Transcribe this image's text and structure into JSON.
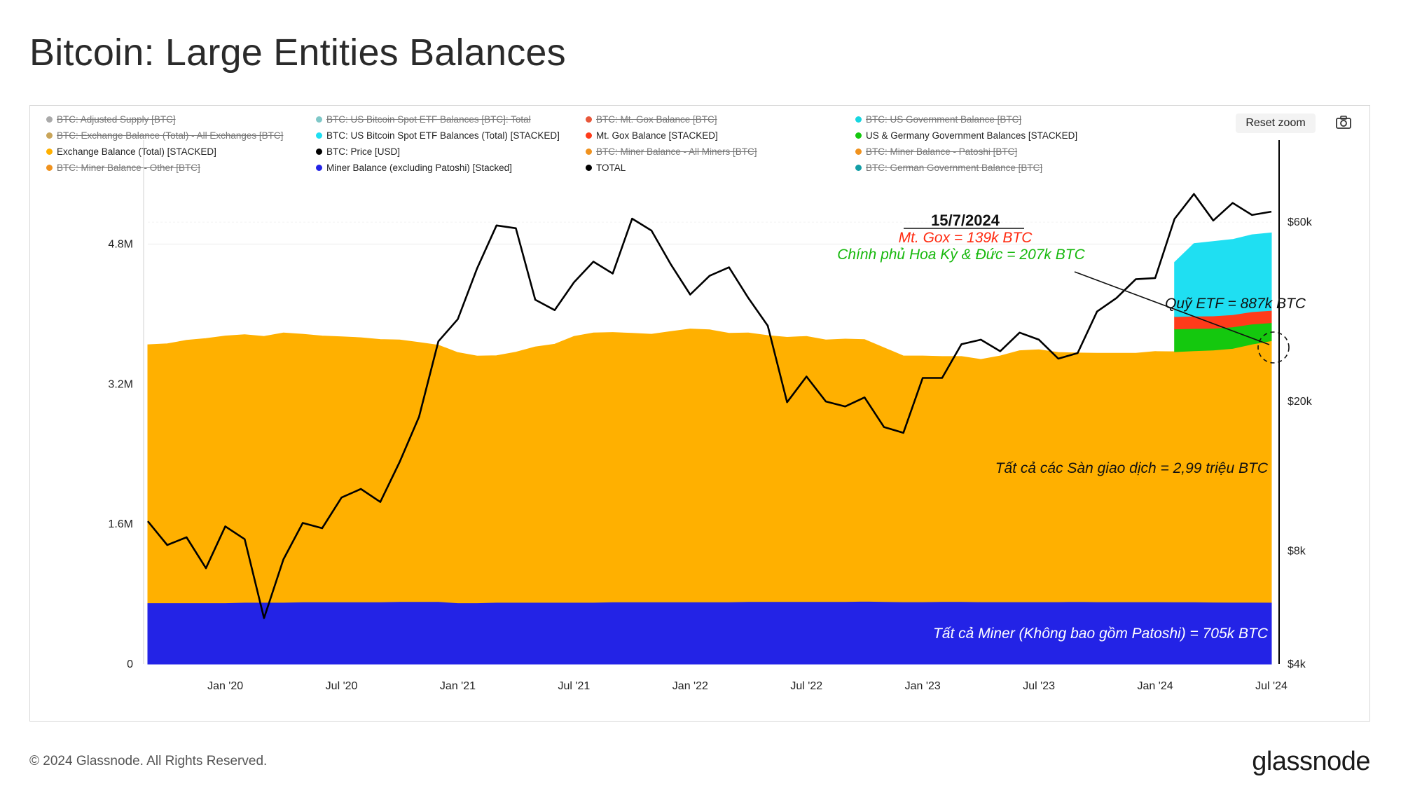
{
  "title": "Bitcoin: Large Entities Balances",
  "toolbar": {
    "reset_zoom": "Reset zoom",
    "camera_icon": "camera-icon"
  },
  "legend": [
    {
      "label": "BTC: Adjusted Supply [BTC]",
      "color": "#aaaaaa",
      "enabled": false
    },
    {
      "label": "BTC: US Bitcoin Spot ETF Balances [BTC]: Total",
      "color": "#7fc8c8",
      "enabled": false
    },
    {
      "label": "BTC: Mt. Gox Balance [BTC]",
      "color": "#e8573a",
      "enabled": false
    },
    {
      "label": "BTC: US Government Balance [BTC]",
      "color": "#17d6e0",
      "enabled": false
    },
    {
      "label": "BTC: Exchange Balance (Total) - All Exchanges [BTC]",
      "color": "#c9a55a",
      "enabled": false
    },
    {
      "label": "BTC: US Bitcoin Spot ETF Balances (Total) [STACKED]",
      "color": "#1fdff2",
      "enabled": true
    },
    {
      "label": "Mt. Gox Balance [STACKED]",
      "color": "#ff3b1a",
      "enabled": true
    },
    {
      "label": "US & Germany Government Balances [STACKED]",
      "color": "#14c80e",
      "enabled": true
    },
    {
      "label": "Exchange Balance (Total) [STACKED]",
      "color": "#ffb000",
      "enabled": true
    },
    {
      "label": "BTC: Price [USD]",
      "color": "#000000",
      "enabled": true
    },
    {
      "label": "BTC: Miner Balance - All Miners [BTC]",
      "color": "#f0921e",
      "enabled": false
    },
    {
      "label": "BTC: Miner Balance - Patoshi [BTC]",
      "color": "#f0921e",
      "enabled": false
    },
    {
      "label": "BTC: Miner Balance - Other [BTC]",
      "color": "#f0921e",
      "enabled": false
    },
    {
      "label": "Miner Balance (excluding Patoshi) [Stacked]",
      "color": "#2323e6",
      "enabled": true
    },
    {
      "label": "TOTAL",
      "color": "#000000",
      "enabled": true
    },
    {
      "label": "BTC: German Government Balance [BTC]",
      "color": "#139ea6",
      "enabled": false
    }
  ],
  "annotations": {
    "date": "15/7/2024",
    "mtgox": "Mt. Gox = 139k BTC",
    "gov": "Chính phủ Hoa Kỳ & Đức  = 207k BTC",
    "etf": "Quỹ ETF = 887k BTC",
    "exchanges": "Tất cả các Sàn giao dịch = 2,99 triệu BTC",
    "miners": "Tất cả Miner (Không bao gồm Patoshi) = 705k BTC"
  },
  "chart_data": {
    "type": "area",
    "x_ticks": [
      "Jan '20",
      "Jul '20",
      "Jan '21",
      "Jul '21",
      "Jan '22",
      "Jul '22",
      "Jan '23",
      "Jul '23",
      "Jan '24",
      "Jul '24"
    ],
    "left_axis": {
      "ticks": [
        "0",
        "1.6M",
        "3.2M",
        "4.8M"
      ],
      "ylim": [
        0,
        5700000
      ]
    },
    "right_axis": {
      "scale": "log",
      "ticks": [
        "$4k",
        "$8k",
        "$20k",
        "$60k"
      ],
      "ylim": [
        4000,
        85000
      ]
    },
    "dates": [
      "2019-09",
      "2019-10",
      "2019-11",
      "2019-12",
      "2020-01",
      "2020-02",
      "2020-03",
      "2020-04",
      "2020-05",
      "2020-06",
      "2020-07",
      "2020-08",
      "2020-09",
      "2020-10",
      "2020-11",
      "2020-12",
      "2021-01",
      "2021-02",
      "2021-03",
      "2021-04",
      "2021-05",
      "2021-06",
      "2021-07",
      "2021-08",
      "2021-09",
      "2021-10",
      "2021-11",
      "2021-12",
      "2022-01",
      "2022-02",
      "2022-03",
      "2022-04",
      "2022-05",
      "2022-06",
      "2022-07",
      "2022-08",
      "2022-09",
      "2022-10",
      "2022-11",
      "2022-12",
      "2023-01",
      "2023-02",
      "2023-03",
      "2023-04",
      "2023-05",
      "2023-06",
      "2023-07",
      "2023-08",
      "2023-09",
      "2023-10",
      "2023-11",
      "2023-12",
      "2024-01",
      "2024-02",
      "2024-03",
      "2024-04",
      "2024-05",
      "2024-06",
      "2024-07"
    ],
    "series": [
      {
        "name": "Miner Balance (excluding Patoshi) [Stacked]",
        "color": "#2323e6",
        "values": [
          700000,
          700000,
          700000,
          700000,
          700000,
          705000,
          705000,
          705000,
          710000,
          710000,
          710000,
          710000,
          710000,
          715000,
          715000,
          715000,
          700000,
          700000,
          705000,
          705000,
          705000,
          705000,
          705000,
          705000,
          710000,
          710000,
          710000,
          710000,
          710000,
          710000,
          710000,
          715000,
          715000,
          715000,
          715000,
          715000,
          715000,
          718000,
          715000,
          712000,
          712000,
          715000,
          715000,
          712000,
          712000,
          712000,
          712000,
          712000,
          715000,
          712000,
          712000,
          712000,
          712000,
          710000,
          710000,
          708000,
          707000,
          706000,
          705000
        ]
      },
      {
        "name": "Exchange Balance (Total) [STACKED]",
        "color": "#ffb000",
        "values": [
          2950000,
          2960000,
          3000000,
          3020000,
          3050000,
          3060000,
          3040000,
          3080000,
          3060000,
          3040000,
          3030000,
          3020000,
          3000000,
          2990000,
          2960000,
          2930000,
          2860000,
          2820000,
          2820000,
          2860000,
          2920000,
          2950000,
          3040000,
          3080000,
          3080000,
          3070000,
          3060000,
          3090000,
          3120000,
          3110000,
          3070000,
          3070000,
          3040000,
          3020000,
          3030000,
          2990000,
          3000000,
          2990000,
          2900000,
          2810000,
          2810000,
          2800000,
          2800000,
          2770000,
          2810000,
          2870000,
          2880000,
          2850000,
          2840000,
          2840000,
          2840000,
          2840000,
          2860000,
          2860000,
          2870000,
          2880000,
          2900000,
          2950000,
          2990000
        ]
      },
      {
        "name": "US & Germany Government Balances [STACKED]",
        "color": "#14c80e",
        "values": [
          0,
          0,
          0,
          0,
          0,
          0,
          0,
          0,
          0,
          0,
          0,
          0,
          0,
          0,
          0,
          0,
          0,
          0,
          0,
          0,
          0,
          0,
          0,
          0,
          0,
          0,
          0,
          0,
          0,
          0,
          0,
          0,
          0,
          0,
          0,
          0,
          0,
          0,
          0,
          0,
          0,
          0,
          0,
          0,
          0,
          0,
          0,
          0,
          0,
          0,
          0,
          0,
          0,
          260000,
          255000,
          250000,
          245000,
          230000,
          207000
        ]
      },
      {
        "name": "Mt. Gox Balance [STACKED]",
        "color": "#ff3b1a",
        "values": [
          0,
          0,
          0,
          0,
          0,
          0,
          0,
          0,
          0,
          0,
          0,
          0,
          0,
          0,
          0,
          0,
          0,
          0,
          0,
          0,
          0,
          0,
          0,
          0,
          0,
          0,
          0,
          0,
          0,
          0,
          0,
          0,
          0,
          0,
          0,
          0,
          0,
          0,
          0,
          0,
          0,
          0,
          0,
          0,
          0,
          0,
          0,
          0,
          0,
          0,
          0,
          0,
          0,
          141000,
          141000,
          141000,
          141000,
          141000,
          139000
        ]
      },
      {
        "name": "BTC: US Bitcoin Spot ETF Balances (Total) [STACKED]",
        "color": "#1fdff2",
        "values": [
          0,
          0,
          0,
          0,
          0,
          0,
          0,
          0,
          0,
          0,
          0,
          0,
          0,
          0,
          0,
          0,
          0,
          0,
          0,
          0,
          0,
          0,
          0,
          0,
          0,
          0,
          0,
          0,
          0,
          0,
          0,
          0,
          0,
          0,
          0,
          0,
          0,
          0,
          0,
          0,
          0,
          0,
          0,
          0,
          0,
          0,
          0,
          0,
          0,
          0,
          0,
          0,
          0,
          620000,
          830000,
          850000,
          860000,
          880000,
          887000
        ]
      },
      {
        "name": "BTC: Price [USD]",
        "color": "#000000",
        "axis": "right",
        "values": [
          9600,
          8300,
          8700,
          7200,
          9300,
          8600,
          5300,
          7600,
          9500,
          9200,
          11100,
          11700,
          10800,
          13800,
          18200,
          28900,
          33100,
          45200,
          58800,
          57800,
          37300,
          35000,
          41500,
          47100,
          43800,
          61300,
          57000,
          46300,
          38500,
          43200,
          45500,
          37700,
          31800,
          19900,
          23300,
          20000,
          19400,
          20500,
          17100,
          16500,
          23100,
          23100,
          28400,
          29200,
          27200,
          30500,
          29200,
          26000,
          26900,
          34700,
          37700,
          42300,
          42600,
          61200,
          71300,
          60600,
          67500,
          62700,
          64000
        ]
      }
    ]
  }
}
